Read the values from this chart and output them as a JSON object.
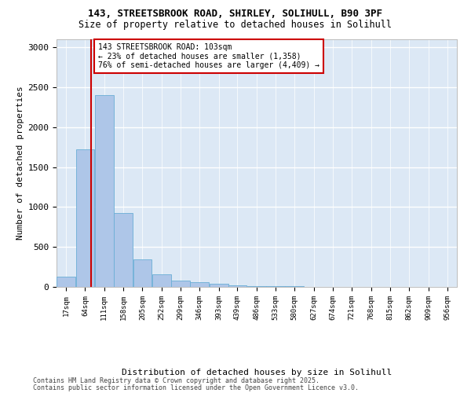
{
  "title1": "143, STREETSBROOK ROAD, SHIRLEY, SOLIHULL, B90 3PF",
  "title2": "Size of property relative to detached houses in Solihull",
  "xlabel": "Distribution of detached houses by size in Solihull",
  "ylabel": "Number of detached properties",
  "bin_labels": [
    "17sqm",
    "64sqm",
    "111sqm",
    "158sqm",
    "205sqm",
    "252sqm",
    "299sqm",
    "346sqm",
    "393sqm",
    "439sqm",
    "486sqm",
    "533sqm",
    "580sqm",
    "627sqm",
    "674sqm",
    "721sqm",
    "768sqm",
    "815sqm",
    "862sqm",
    "909sqm",
    "956sqm"
  ],
  "bin_starts": [
    17,
    64,
    111,
    158,
    205,
    252,
    299,
    346,
    393,
    439,
    486,
    533,
    580,
    627,
    674,
    721,
    768,
    815,
    862,
    909,
    956
  ],
  "bin_width": 47,
  "bar_heights": [
    130,
    1720,
    2400,
    930,
    340,
    155,
    80,
    55,
    35,
    20,
    5,
    5,
    5,
    2,
    1,
    1,
    0,
    0,
    0,
    0,
    0
  ],
  "bar_color": "#aec6e8",
  "bar_edge_color": "#6aaed6",
  "red_line_x": 103,
  "annotation_text": "143 STREETSBROOK ROAD: 103sqm\n← 23% of detached houses are smaller (1,358)\n76% of semi-detached houses are larger (4,409) →",
  "ylim_max": 3100,
  "yticks": [
    0,
    500,
    1000,
    1500,
    2000,
    2500,
    3000
  ],
  "plot_bg": "#dce8f5",
  "footer_line1": "Contains HM Land Registry data © Crown copyright and database right 2025.",
  "footer_line2": "Contains public sector information licensed under the Open Government Licence v3.0."
}
